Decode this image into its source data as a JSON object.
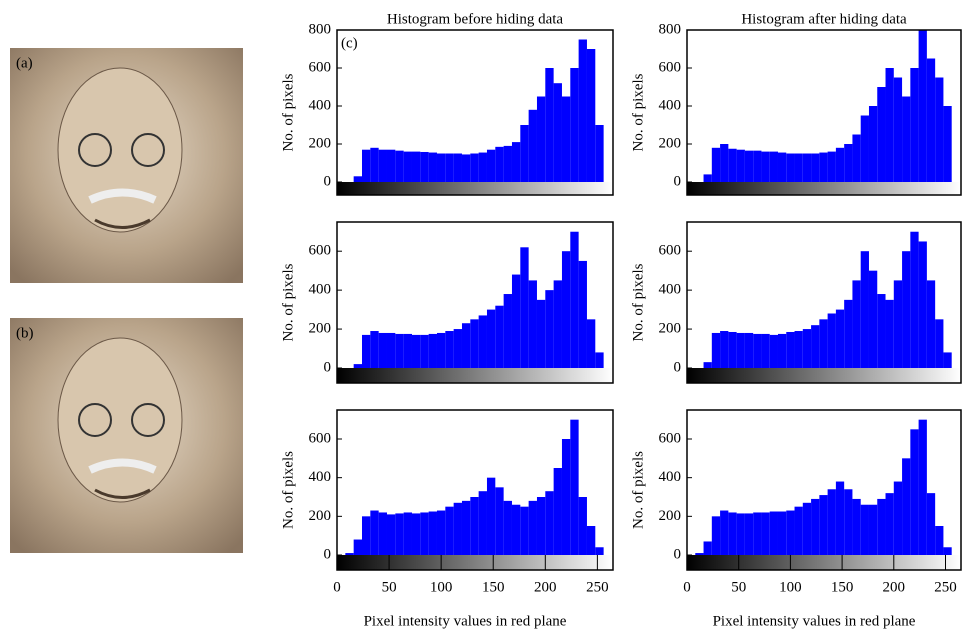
{
  "images": [
    {
      "label": "(a)"
    },
    {
      "label": "(b)"
    }
  ],
  "chart_data": [
    {
      "type": "histogram",
      "title": "Histogram before hiding data",
      "annotation": "(c)",
      "ylabel": "No. of pixels",
      "color": "#0000ff",
      "bins": [
        0,
        8,
        16,
        24,
        32,
        40,
        48,
        56,
        64,
        72,
        80,
        88,
        96,
        104,
        112,
        120,
        128,
        136,
        144,
        152,
        160,
        168,
        176,
        184,
        192,
        200,
        208,
        216,
        224,
        232,
        240,
        248,
        256
      ],
      "values": [
        0,
        0,
        30,
        170,
        180,
        170,
        170,
        165,
        160,
        160,
        158,
        155,
        150,
        150,
        150,
        145,
        150,
        155,
        170,
        185,
        190,
        210,
        300,
        380,
        450,
        600,
        520,
        450,
        600,
        750,
        700,
        300
      ],
      "xlim": [
        0,
        265
      ],
      "ylim": [
        0,
        800
      ],
      "yticks": [
        0,
        200,
        400,
        600,
        800
      ]
    },
    {
      "type": "histogram",
      "title": "Histogram after hiding data",
      "ylabel": "No. of pixels",
      "color": "#0000ff",
      "bins": [
        0,
        8,
        16,
        24,
        32,
        40,
        48,
        56,
        64,
        72,
        80,
        88,
        96,
        104,
        112,
        120,
        128,
        136,
        144,
        152,
        160,
        168,
        176,
        184,
        192,
        200,
        208,
        216,
        224,
        232,
        240,
        248,
        256
      ],
      "values": [
        0,
        0,
        40,
        180,
        200,
        175,
        170,
        165,
        165,
        160,
        160,
        155,
        150,
        150,
        150,
        150,
        155,
        160,
        180,
        200,
        250,
        350,
        400,
        500,
        600,
        550,
        450,
        600,
        800,
        650,
        550,
        400
      ],
      "xlim": [
        0,
        265
      ],
      "ylim": [
        0,
        800
      ],
      "yticks": [
        0,
        200,
        400,
        600,
        800
      ]
    },
    {
      "type": "histogram",
      "ylabel": "No. of pixels",
      "color": "#0000ff",
      "bins": [
        0,
        8,
        16,
        24,
        32,
        40,
        48,
        56,
        64,
        72,
        80,
        88,
        96,
        104,
        112,
        120,
        128,
        136,
        144,
        152,
        160,
        168,
        176,
        184,
        192,
        200,
        208,
        216,
        224,
        232,
        240,
        248,
        256
      ],
      "values": [
        0,
        0,
        20,
        170,
        190,
        180,
        180,
        175,
        175,
        170,
        170,
        175,
        180,
        190,
        200,
        230,
        250,
        270,
        300,
        320,
        380,
        480,
        620,
        450,
        350,
        400,
        450,
        600,
        700,
        550,
        250,
        80
      ],
      "xlim": [
        0,
        265
      ],
      "ylim": [
        0,
        750
      ],
      "yticks": [
        0,
        200,
        400,
        600
      ]
    },
    {
      "type": "histogram",
      "ylabel": "No. of pixels",
      "color": "#0000ff",
      "bins": [
        0,
        8,
        16,
        24,
        32,
        40,
        48,
        56,
        64,
        72,
        80,
        88,
        96,
        104,
        112,
        120,
        128,
        136,
        144,
        152,
        160,
        168,
        176,
        184,
        192,
        200,
        208,
        216,
        224,
        232,
        240,
        248,
        256
      ],
      "values": [
        0,
        0,
        30,
        180,
        190,
        185,
        180,
        180,
        175,
        175,
        170,
        175,
        185,
        190,
        200,
        220,
        250,
        280,
        300,
        350,
        450,
        600,
        500,
        380,
        350,
        450,
        600,
        700,
        650,
        450,
        250,
        80
      ],
      "xlim": [
        0,
        265
      ],
      "ylim": [
        0,
        750
      ],
      "yticks": [
        0,
        200,
        400,
        600
      ]
    },
    {
      "type": "histogram",
      "ylabel": "No. of pixels",
      "xlabel": "Pixel intensity values in red plane",
      "color": "#0000ff",
      "bins": [
        0,
        8,
        16,
        24,
        32,
        40,
        48,
        56,
        64,
        72,
        80,
        88,
        96,
        104,
        112,
        120,
        128,
        136,
        144,
        152,
        160,
        168,
        176,
        184,
        192,
        200,
        208,
        216,
        224,
        232,
        240,
        248,
        256
      ],
      "values": [
        0,
        10,
        80,
        200,
        230,
        220,
        210,
        215,
        220,
        215,
        220,
        225,
        230,
        250,
        270,
        280,
        300,
        330,
        400,
        350,
        280,
        260,
        250,
        280,
        300,
        330,
        450,
        600,
        700,
        300,
        150,
        40
      ],
      "xlim": [
        0,
        265
      ],
      "xticks": [
        0,
        50,
        100,
        150,
        200,
        250
      ],
      "ylim": [
        0,
        750
      ],
      "yticks": [
        0,
        200,
        400,
        600
      ]
    },
    {
      "type": "histogram",
      "ylabel": "No. of pixels",
      "xlabel": "Pixel intensity values in red plane",
      "color": "#0000ff",
      "bins": [
        0,
        8,
        16,
        24,
        32,
        40,
        48,
        56,
        64,
        72,
        80,
        88,
        96,
        104,
        112,
        120,
        128,
        136,
        144,
        152,
        160,
        168,
        176,
        184,
        192,
        200,
        208,
        216,
        224,
        232,
        240,
        248,
        256
      ],
      "values": [
        0,
        10,
        70,
        200,
        230,
        220,
        215,
        215,
        220,
        220,
        225,
        225,
        230,
        250,
        270,
        290,
        310,
        340,
        380,
        340,
        290,
        260,
        260,
        290,
        320,
        380,
        500,
        650,
        700,
        320,
        150,
        40
      ],
      "xlim": [
        0,
        265
      ],
      "xticks": [
        0,
        50,
        100,
        150,
        200,
        250
      ],
      "ylim": [
        0,
        750
      ],
      "yticks": [
        0,
        200,
        400,
        600
      ]
    }
  ]
}
